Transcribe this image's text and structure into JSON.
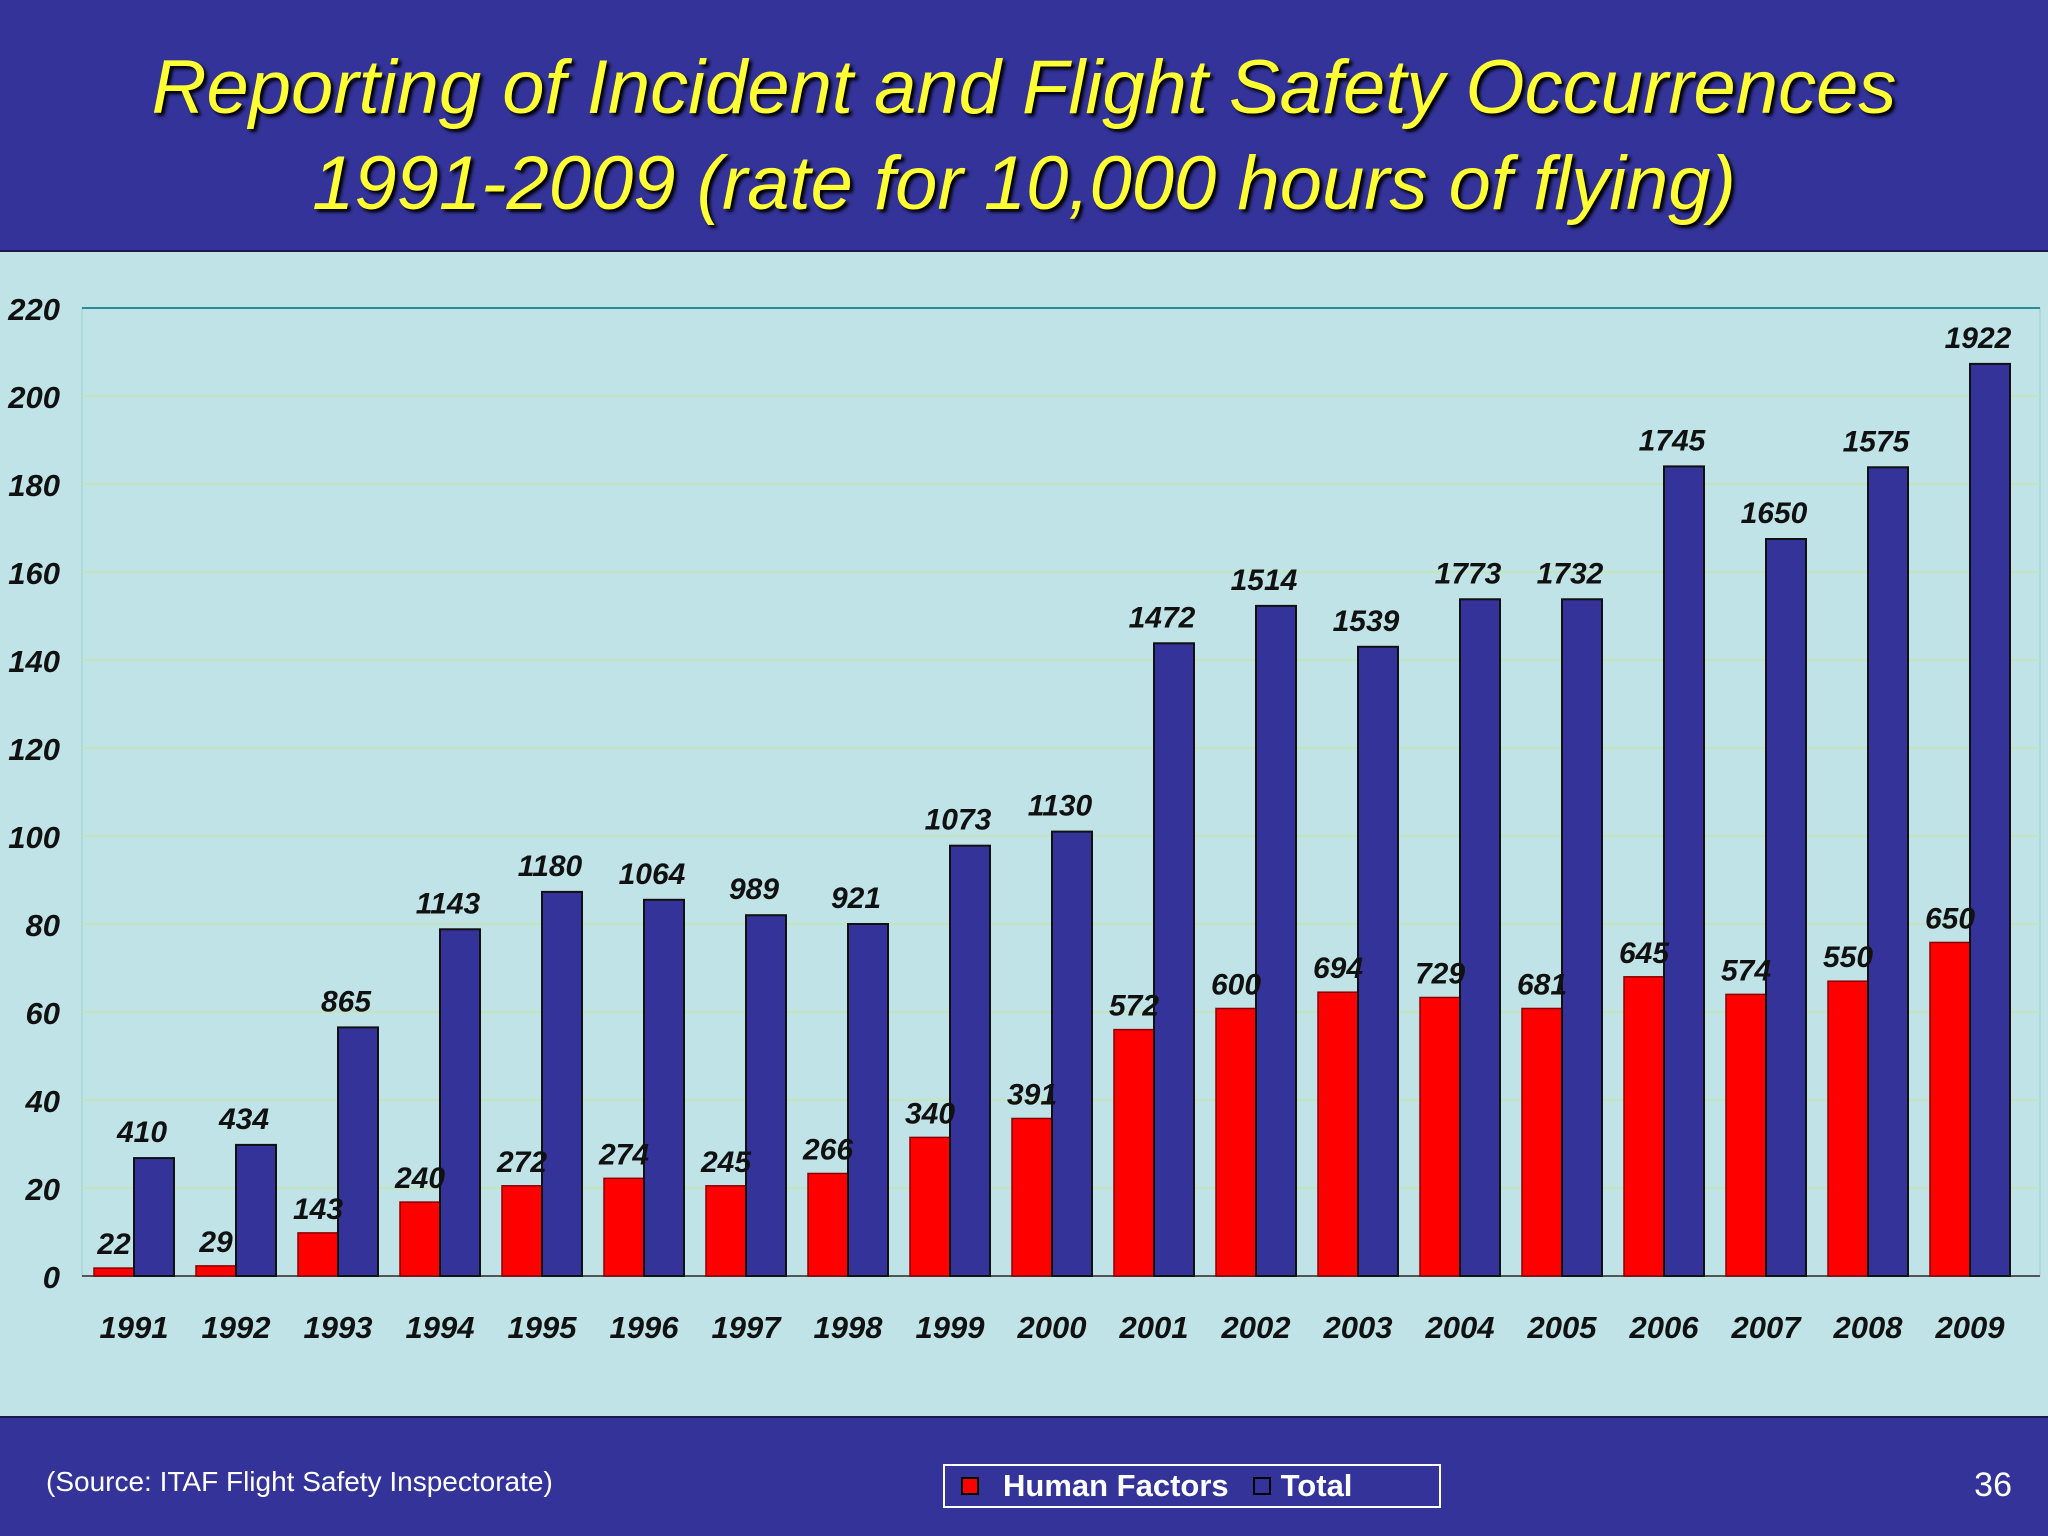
{
  "slide": {
    "title_line1": "Reporting of Incident and Flight Safety Occurrences",
    "title_line2": "1991-2009 (rate for 10,000 hours of flying)",
    "source": "(Source: ITAF Flight Safety Inspectorate)",
    "page_number": "36"
  },
  "colors": {
    "human_factors": "#ff0000",
    "total": "#333399",
    "plot_background": "#bfe3e6"
  },
  "chart_data": {
    "type": "bar",
    "categories": [
      "1991",
      "1992",
      "1993",
      "1994",
      "1995",
      "1996",
      "1997",
      "1998",
      "1999",
      "2000",
      "2001",
      "2002",
      "2003",
      "2004",
      "2005",
      "2006",
      "2007",
      "2008",
      "2009"
    ],
    "series": [
      {
        "name": "Human Factors",
        "values": [
          1.8,
          2.3,
          9.8,
          16.8,
          20.5,
          22.2,
          20.5,
          23.3,
          31.5,
          35.8,
          56,
          60.8,
          64.5,
          63.3,
          60.8,
          68,
          64,
          67,
          75.8
        ],
        "labels": [
          "22",
          "29",
          "143",
          "240",
          "272",
          "274",
          "245",
          "266",
          "340",
          "391",
          "572",
          "600",
          "694",
          "729",
          "681",
          "645",
          "574",
          "550",
          "650"
        ]
      },
      {
        "name": "Total",
        "values": [
          26.8,
          29.8,
          56.5,
          78.8,
          87.3,
          85.5,
          82,
          80,
          97.8,
          101,
          143.8,
          152.3,
          143,
          153.8,
          153.8,
          184,
          167.5,
          183.8,
          207.3
        ],
        "labels": [
          "410",
          "434",
          "865",
          "1143",
          "1180",
          "1064",
          "989",
          "921",
          "1073",
          "1130",
          "1472",
          "1514",
          "1539",
          "1773",
          "1732",
          "1745",
          "1650",
          "1575",
          "1922"
        ]
      }
    ],
    "yticks": [
      "0",
      "20",
      "40",
      "60",
      "80",
      "100",
      "120",
      "140",
      "160",
      "180",
      "200",
      "220"
    ],
    "ylim": [
      0,
      220
    ],
    "grid": true,
    "legend_position": "bottom"
  }
}
